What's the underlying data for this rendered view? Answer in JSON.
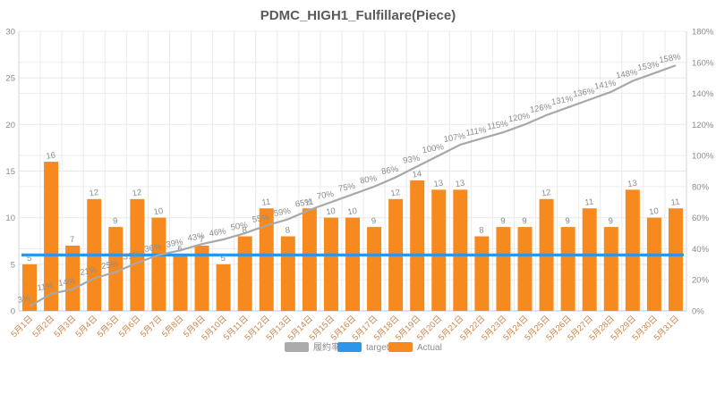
{
  "title": "PDMC_HIGH1_Fulfillare(Piece)",
  "legend": {
    "rate": {
      "label": "履約率",
      "color": "#ABABAB"
    },
    "target": {
      "label": "target",
      "color": "#2E95E8"
    },
    "actual": {
      "label": "Actual",
      "color": "#F68A1E"
    }
  },
  "chart_data": {
    "type": "bar",
    "title": "PDMC_HIGH1_Fulfillare(Piece)",
    "categories": [
      "5月1日",
      "5月2日",
      "5月3日",
      "5月4日",
      "5月5日",
      "5月6日",
      "5月7日",
      "5月8日",
      "5月9日",
      "5月10日",
      "5月11日",
      "5月12日",
      "5月13日",
      "5月14日",
      "5月15日",
      "5月16日",
      "5月17日",
      "5月18日",
      "5月19日",
      "5月20日",
      "5月21日",
      "5月22日",
      "5月23日",
      "5月24日",
      "5月25日",
      "5月26日",
      "5月27日",
      "5月28日",
      "5月29日",
      "5月30日",
      "5月31日"
    ],
    "series": [
      {
        "name": "Actual",
        "type": "bar",
        "color": "#F68A1E",
        "values": [
          5,
          16,
          7,
          12,
          9,
          12,
          10,
          6,
          7,
          5,
          8,
          11,
          8,
          11,
          10,
          10,
          9,
          12,
          14,
          13,
          13,
          8,
          9,
          9,
          12,
          9,
          11,
          9,
          13,
          10,
          11
        ]
      },
      {
        "name": "履約率",
        "type": "line",
        "axis": "right",
        "color": "#A8A8A8",
        "suffix": "%",
        "values": [
          3,
          11,
          14,
          21,
          25,
          31,
          36,
          39,
          43,
          46,
          50,
          55,
          59,
          65,
          70,
          75,
          80,
          86,
          93,
          100,
          107,
          111,
          115,
          120,
          126,
          131,
          136,
          141,
          148,
          153,
          158
        ]
      },
      {
        "name": "target",
        "type": "line",
        "axis": "left",
        "color": "#2E95E8",
        "constant": 6
      }
    ],
    "left_axis": {
      "min": 0,
      "max": 30,
      "step": 5,
      "suffix": ""
    },
    "right_axis": {
      "min": 0,
      "max": 180,
      "step": 20,
      "suffix": "%"
    },
    "grid": true,
    "legend_position": "bottom",
    "label_colors": {
      "values": "#8C8C8C",
      "percent": "#8C8C8C",
      "x_ticks": "#C9854C"
    }
  }
}
